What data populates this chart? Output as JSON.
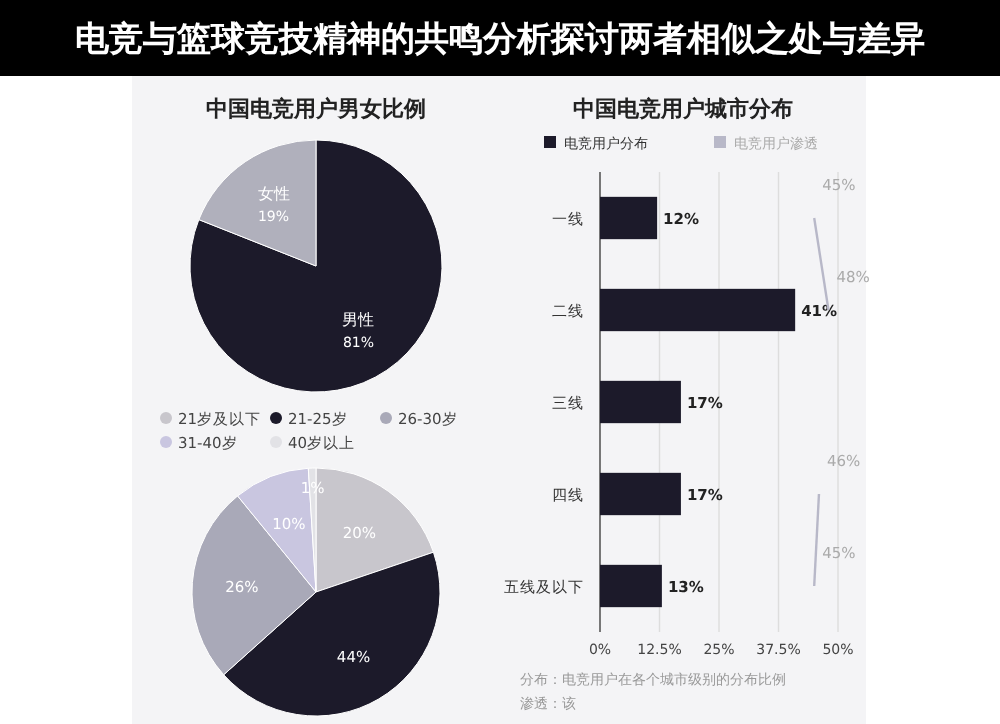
{
  "chart_data": [
    {
      "type": "pie",
      "title": "中国电竞用户男女比例",
      "categories": [
        "男性",
        "女性"
      ],
      "values": [
        81,
        19
      ],
      "value_labels": [
        "81%",
        "19%"
      ],
      "colors": [
        "#1c1a2a",
        "#b0b0bc"
      ],
      "legend": false
    },
    {
      "type": "bar",
      "orientation": "horizontal",
      "title": "中国电竞用户城市分布",
      "categories": [
        "一线",
        "二线",
        "三线",
        "四线",
        "五线及以下"
      ],
      "series": [
        {
          "name": "电竞用户分布",
          "color": "#1c1a2a",
          "values": [
            12,
            41,
            17,
            17,
            13
          ],
          "value_labels": [
            "12%",
            "41%",
            "17%",
            "17%",
            "13%"
          ]
        },
        {
          "name": "电竞用户渗透",
          "type": "line",
          "color": "#b8b8c8",
          "values": [
            45,
            48,
            null,
            46,
            45
          ],
          "value_labels": [
            "45%",
            "48%",
            null,
            "46%",
            "45%"
          ]
        }
      ],
      "xlim": [
        0,
        50
      ],
      "xticks": [
        {
          "value": 0,
          "label": "0%"
        },
        {
          "value": 12.5,
          "label": "12.5%"
        },
        {
          "value": 25,
          "label": "25%"
        },
        {
          "value": 37.5,
          "label": "37.5%"
        },
        {
          "value": 50,
          "label": "50%"
        }
      ],
      "grid": "x",
      "legend": "top",
      "annotations": [
        "分布：电竞用户在各个城市级别的分布比例",
        "渗透：该"
      ]
    },
    {
      "type": "other",
      "title": "电竞与篮球竞技精神的共鸣分析探讨两者相似之处与差异"
    },
    {
      "type": "pie",
      "categories": [
        "21岁及以下",
        "21-25岁",
        "26-30岁",
        "31-40岁",
        "40岁以上"
      ],
      "values": [
        20,
        44,
        26,
        10,
        1
      ],
      "value_labels": [
        "20%",
        "44%",
        "26%",
        "10%",
        "1%"
      ],
      "colors": [
        "#c8c6cc",
        "#1c1a2a",
        "#a9a9b8",
        "#c9c6e0",
        "#e2e2e6"
      ],
      "legend": "top"
    }
  ]
}
